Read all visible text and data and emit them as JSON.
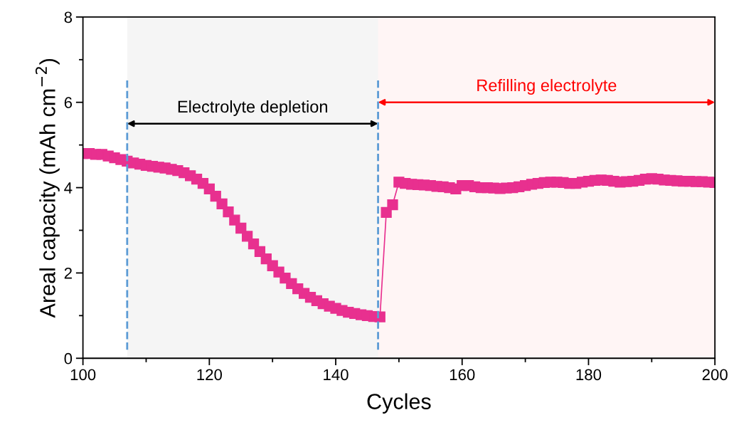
{
  "chart_data": {
    "type": "line",
    "xlabel": "Cycles",
    "ylabel": "Areal capacity (mAh cm$^{−2}$)",
    "xlim": [
      100,
      200
    ],
    "xticks": [
      100,
      120,
      140,
      160,
      180,
      200
    ],
    "ylim": [
      0,
      8
    ],
    "yticks": [
      0,
      2,
      4,
      6,
      8
    ],
    "marker": "square",
    "line_style": "solid",
    "grid": false,
    "legend": false,
    "x": [
      100,
      101,
      102,
      103,
      104,
      105,
      106,
      107,
      108,
      109,
      110,
      111,
      112,
      113,
      114,
      115,
      116,
      117,
      118,
      119,
      120,
      121,
      122,
      123,
      124,
      125,
      126,
      127,
      128,
      129,
      130,
      131,
      132,
      133,
      134,
      135,
      136,
      137,
      138,
      139,
      140,
      141,
      142,
      143,
      144,
      145,
      146,
      147,
      148,
      149,
      150,
      151,
      152,
      153,
      154,
      155,
      156,
      157,
      158,
      159,
      160,
      161,
      162,
      163,
      164,
      165,
      166,
      167,
      168,
      169,
      170,
      171,
      172,
      173,
      174,
      175,
      176,
      177,
      178,
      179,
      180,
      181,
      182,
      183,
      184,
      185,
      186,
      187,
      188,
      189,
      190,
      191,
      192,
      193,
      194,
      195,
      196,
      197,
      198,
      199,
      200
    ],
    "series": [
      {
        "color": "#e8308f",
        "values": [
          4.8,
          4.8,
          4.78,
          4.78,
          4.74,
          4.7,
          4.66,
          4.62,
          4.58,
          4.55,
          4.52,
          4.5,
          4.48,
          4.46,
          4.43,
          4.4,
          4.35,
          4.28,
          4.2,
          4.1,
          3.97,
          3.8,
          3.62,
          3.43,
          3.24,
          3.05,
          2.86,
          2.68,
          2.5,
          2.33,
          2.17,
          2.02,
          1.88,
          1.75,
          1.63,
          1.52,
          1.43,
          1.35,
          1.28,
          1.22,
          1.17,
          1.12,
          1.08,
          1.05,
          1.02,
          1.0,
          0.98,
          0.97,
          3.42,
          3.6,
          4.13,
          4.1,
          4.08,
          4.07,
          4.06,
          4.05,
          4.03,
          4.02,
          4.0,
          3.97,
          4.05,
          4.05,
          4.02,
          4.0,
          4.0,
          3.99,
          3.98,
          3.99,
          4.0,
          4.02,
          4.05,
          4.08,
          4.1,
          4.12,
          4.13,
          4.13,
          4.12,
          4.1,
          4.1,
          4.13,
          4.15,
          4.17,
          4.18,
          4.17,
          4.15,
          4.13,
          4.14,
          4.15,
          4.17,
          4.2,
          4.21,
          4.2,
          4.18,
          4.17,
          4.16,
          4.15,
          4.15,
          4.14,
          4.14,
          4.13,
          4.12
        ]
      }
    ],
    "ref_lines": [
      {
        "axis": "x",
        "value": 107,
        "color": "#5b9bd5",
        "line_style": "dashed"
      },
      {
        "axis": "x",
        "value": 146.7,
        "color": "#5b9bd5",
        "line_style": "dashed"
      }
    ],
    "bands": [
      {
        "axis": "x",
        "from": 107,
        "to": 146.7,
        "label": "Electrolyte depletion",
        "color": "#000000"
      },
      {
        "axis": "x",
        "from": 146.7,
        "to": 200,
        "label": "Refilling electrolyte",
        "color": "#ff0000"
      }
    ]
  }
}
